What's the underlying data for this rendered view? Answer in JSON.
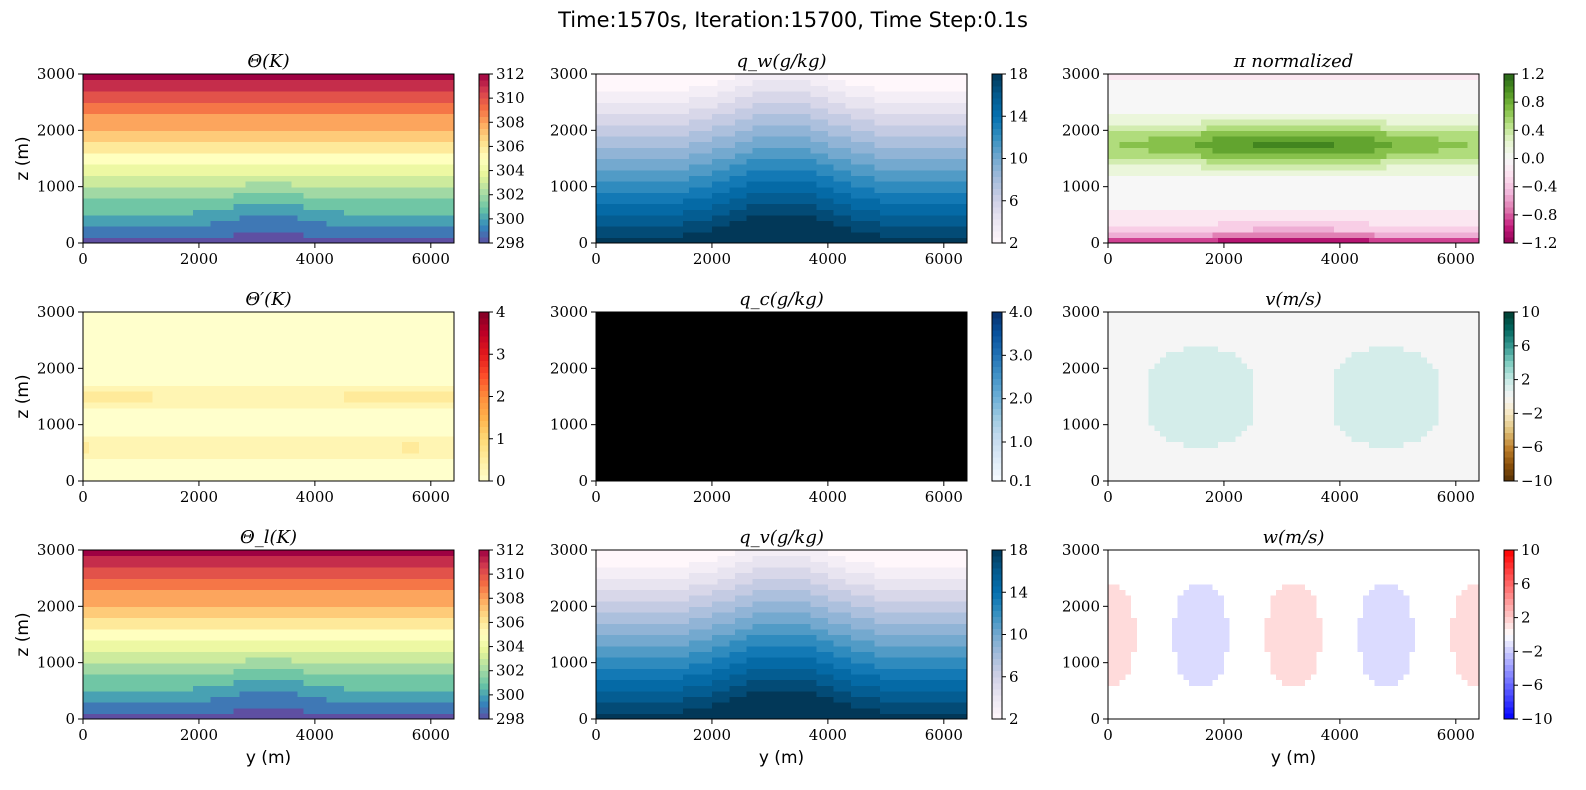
{
  "figure": {
    "title": "Time:1570s, Iteration:15700, Time Step:0.1s"
  },
  "chart_data": [
    {
      "type": "heatmap",
      "field": "theta",
      "title": "Θ(K)",
      "xlabel": "",
      "ylabel": "z (m)",
      "xlim": [
        0,
        6400
      ],
      "ylim": [
        0,
        3000
      ],
      "xticks": [
        0,
        2000,
        4000,
        6000
      ],
      "yticks": [
        0,
        1000,
        2000,
        3000
      ],
      "colormap": "Spectral_r",
      "vmin": 298,
      "vmax": 312,
      "cbar_ticks": [
        298,
        300,
        302,
        304,
        306,
        308,
        310,
        312
      ],
      "cbar_labels": [
        "298",
        "300",
        "302",
        "304",
        "306",
        "308",
        "310",
        "312"
      ],
      "value_range": [
        298,
        312
      ]
    },
    {
      "type": "heatmap",
      "field": "qw",
      "title": "q_w(g/kg)",
      "xlabel": "",
      "ylabel": "",
      "xlim": [
        0,
        6400
      ],
      "ylim": [
        0,
        3000
      ],
      "xticks": [
        0,
        2000,
        4000,
        6000
      ],
      "yticks": [
        0,
        1000,
        2000,
        3000
      ],
      "colormap": "PuBu",
      "vmin": 2,
      "vmax": 18,
      "cbar_ticks": [
        2,
        6,
        10,
        14,
        18
      ],
      "cbar_labels": [
        "2",
        "6",
        "10",
        "14",
        "18"
      ],
      "value_range": [
        2.5,
        18
      ]
    },
    {
      "type": "heatmap",
      "field": "pi",
      "title": "π normalized",
      "xlabel": "",
      "ylabel": "",
      "xlim": [
        0,
        6400
      ],
      "ylim": [
        0,
        3000
      ],
      "xticks": [
        0,
        2000,
        4000,
        6000
      ],
      "yticks": [
        0,
        1000,
        2000,
        3000
      ],
      "colormap": "PiYG",
      "vmin": -1.2,
      "vmax": 1.2,
      "cbar_ticks": [
        -1.2,
        -0.8,
        -0.4,
        0.0,
        0.4,
        0.8,
        1.2
      ],
      "cbar_labels": [
        "−1.2",
        "−0.8",
        "−0.4",
        "0.0",
        "0.4",
        "0.8",
        "1.2"
      ],
      "value_range": [
        -1.1,
        1.0
      ]
    },
    {
      "type": "heatmap",
      "field": "theta_prime",
      "title": "Θ′(K)",
      "xlabel": "",
      "ylabel": "z (m)",
      "xlim": [
        0,
        6400
      ],
      "ylim": [
        0,
        3000
      ],
      "xticks": [
        0,
        2000,
        4000,
        6000
      ],
      "yticks": [
        0,
        1000,
        2000,
        3000
      ],
      "colormap": "YlOrRd",
      "vmin": 0,
      "vmax": 4,
      "cbar_ticks": [
        0,
        1,
        2,
        3,
        4
      ],
      "cbar_labels": [
        "0",
        "1",
        "2",
        "3",
        "4"
      ],
      "value_range": [
        0,
        0.6
      ]
    },
    {
      "type": "heatmap",
      "field": "qc",
      "title": "q_c(g/kg)",
      "xlabel": "",
      "ylabel": "",
      "xlim": [
        0,
        6400
      ],
      "ylim": [
        0,
        3000
      ],
      "xticks": [
        0,
        2000,
        4000,
        6000
      ],
      "yticks": [
        0,
        1000,
        2000,
        3000
      ],
      "colormap": "Blues",
      "vmin": 0.1,
      "vmax": 4.0,
      "cbar_ticks": [
        0.1,
        1.0,
        2.0,
        3.0,
        4.0
      ],
      "cbar_labels": [
        "0.1",
        "1.0",
        "2.0",
        "3.0",
        "4.0"
      ],
      "value_range": [
        0,
        0
      ],
      "fill_color": "#000000"
    },
    {
      "type": "heatmap",
      "field": "v",
      "title": "v(m/s)",
      "xlabel": "",
      "ylabel": "",
      "xlim": [
        0,
        6400
      ],
      "ylim": [
        0,
        3000
      ],
      "xticks": [
        0,
        2000,
        4000,
        6000
      ],
      "yticks": [
        0,
        1000,
        2000,
        3000
      ],
      "colormap": "BrBG",
      "vmin": -10,
      "vmax": 10,
      "cbar_ticks": [
        -10,
        -6,
        -2,
        2,
        6,
        10
      ],
      "cbar_labels": [
        "−10",
        "−6",
        "−2",
        "2",
        "6",
        "10"
      ],
      "value_range": [
        -2,
        2
      ]
    },
    {
      "type": "heatmap",
      "field": "theta_l",
      "title": "Θ_l(K)",
      "xlabel": "y (m)",
      "ylabel": "z (m)",
      "xlim": [
        0,
        6400
      ],
      "ylim": [
        0,
        3000
      ],
      "xticks": [
        0,
        2000,
        4000,
        6000
      ],
      "yticks": [
        0,
        1000,
        2000,
        3000
      ],
      "colormap": "Spectral_r",
      "vmin": 298,
      "vmax": 312,
      "cbar_ticks": [
        298,
        300,
        302,
        304,
        306,
        308,
        310,
        312
      ],
      "cbar_labels": [
        "298",
        "300",
        "302",
        "304",
        "306",
        "308",
        "310",
        "312"
      ],
      "value_range": [
        298,
        312
      ]
    },
    {
      "type": "heatmap",
      "field": "qv",
      "title": "q_v(g/kg)",
      "xlabel": "y (m)",
      "ylabel": "",
      "xlim": [
        0,
        6400
      ],
      "ylim": [
        0,
        3000
      ],
      "xticks": [
        0,
        2000,
        4000,
        6000
      ],
      "yticks": [
        0,
        1000,
        2000,
        3000
      ],
      "colormap": "PuBu",
      "vmin": 2,
      "vmax": 18,
      "cbar_ticks": [
        2,
        6,
        10,
        14,
        18
      ],
      "cbar_labels": [
        "2",
        "6",
        "10",
        "14",
        "18"
      ],
      "value_range": [
        2.5,
        18
      ]
    },
    {
      "type": "heatmap",
      "field": "w",
      "title": "w(m/s)",
      "xlabel": "y (m)",
      "ylabel": "",
      "xlim": [
        0,
        6400
      ],
      "ylim": [
        0,
        3000
      ],
      "xticks": [
        0,
        2000,
        4000,
        6000
      ],
      "yticks": [
        0,
        1000,
        2000,
        3000
      ],
      "colormap": "bwr",
      "vmin": -10,
      "vmax": 10,
      "cbar_ticks": [
        -10,
        -6,
        -2,
        2,
        6,
        10
      ],
      "cbar_labels": [
        "−10",
        "−6",
        "−2",
        "2",
        "6",
        "10"
      ],
      "value_range": [
        -2,
        2
      ]
    }
  ]
}
